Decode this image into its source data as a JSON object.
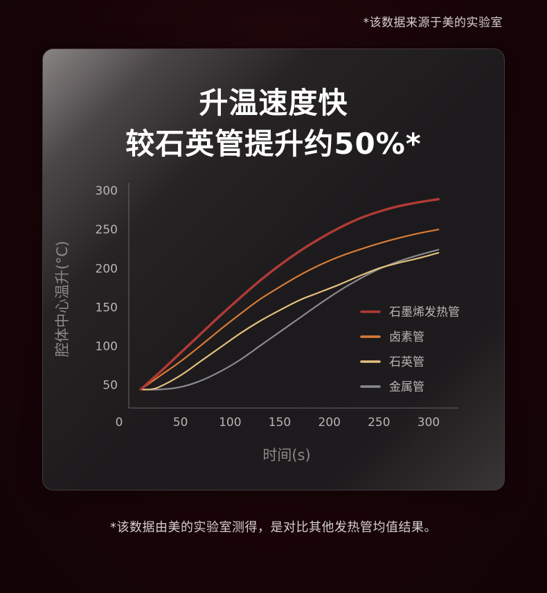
{
  "top_note": "*该数据来源于美的实验室",
  "headline": {
    "line1": "升温速度快",
    "line2": "较石英管提升约50%*"
  },
  "bottom_note": "*该数据由美的实验室测得，是对比其他发热管均值结果。",
  "chart_data": {
    "type": "line",
    "title": "",
    "xlabel": "时间(s)",
    "ylabel": "腔体中心温升(°C)",
    "xlim": [
      0,
      330
    ],
    "ylim": [
      20,
      310
    ],
    "x_ticks": [
      0,
      50,
      100,
      150,
      200,
      250,
      300
    ],
    "y_ticks": [
      50,
      100,
      150,
      200,
      250,
      300
    ],
    "grid": false,
    "legend_position": "right",
    "series": [
      {
        "name": "石墨烯发热管",
        "color": "#b03a36",
        "points": [
          [
            10,
            44
          ],
          [
            30,
            67
          ],
          [
            50,
            91
          ],
          [
            70,
            115
          ],
          [
            90,
            139
          ],
          [
            110,
            162
          ],
          [
            130,
            184
          ],
          [
            150,
            204
          ],
          [
            170,
            222
          ],
          [
            190,
            238
          ],
          [
            210,
            252
          ],
          [
            230,
            264
          ],
          [
            250,
            273
          ],
          [
            270,
            280
          ],
          [
            290,
            285
          ],
          [
            310,
            289
          ]
        ]
      },
      {
        "name": "卤素管",
        "color": "#d97c36",
        "points": [
          [
            10,
            44
          ],
          [
            30,
            62
          ],
          [
            50,
            80
          ],
          [
            70,
            100
          ],
          [
            90,
            121
          ],
          [
            110,
            141
          ],
          [
            130,
            160
          ],
          [
            150,
            176
          ],
          [
            170,
            191
          ],
          [
            190,
            204
          ],
          [
            210,
            215
          ],
          [
            230,
            224
          ],
          [
            250,
            232
          ],
          [
            270,
            239
          ],
          [
            290,
            245
          ],
          [
            310,
            250
          ]
        ]
      },
      {
        "name": "石英管",
        "color": "#e4c07e",
        "points": [
          [
            10,
            44
          ],
          [
            20,
            44
          ],
          [
            30,
            48
          ],
          [
            50,
            62
          ],
          [
            70,
            80
          ],
          [
            90,
            98
          ],
          [
            110,
            116
          ],
          [
            130,
            132
          ],
          [
            150,
            146
          ],
          [
            170,
            159
          ],
          [
            190,
            169
          ],
          [
            210,
            179
          ],
          [
            230,
            190
          ],
          [
            250,
            200
          ],
          [
            270,
            207
          ],
          [
            290,
            213
          ],
          [
            310,
            220
          ]
        ]
      },
      {
        "name": "金属管",
        "color": "#8a8a8e",
        "points": [
          [
            10,
            44
          ],
          [
            30,
            44
          ],
          [
            50,
            47
          ],
          [
            70,
            55
          ],
          [
            90,
            67
          ],
          [
            110,
            82
          ],
          [
            130,
            100
          ],
          [
            150,
            118
          ],
          [
            170,
            136
          ],
          [
            190,
            154
          ],
          [
            210,
            171
          ],
          [
            230,
            186
          ],
          [
            250,
            199
          ],
          [
            270,
            209
          ],
          [
            290,
            217
          ],
          [
            310,
            224
          ]
        ]
      }
    ]
  }
}
